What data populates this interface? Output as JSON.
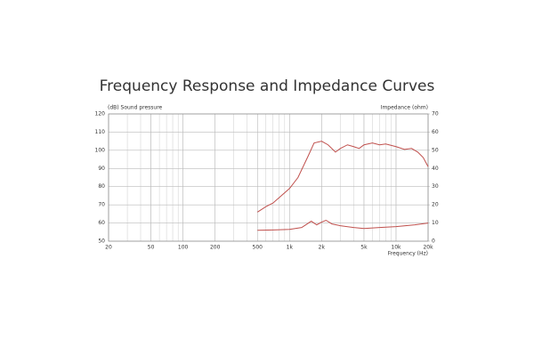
{
  "chart_data": {
    "type": "line",
    "title": "Frequency Response and Impedance Curves",
    "ylabel": "(dB)  Sound pressure",
    "y2label": "Impedance  (ohm)",
    "xlabel": "Frequency  (Hz)",
    "xscale": "log",
    "xlim": [
      20,
      20000
    ],
    "xticks": [
      20,
      50,
      100,
      200,
      500,
      {
        "value": 1000,
        "label": "1k"
      },
      {
        "value": 2000,
        "label": "2k"
      },
      {
        "value": 5000,
        "label": "5k"
      },
      {
        "value": 10000,
        "label": "10k"
      },
      {
        "value": 20000,
        "label": "20k"
      }
    ],
    "ylim": [
      50,
      120
    ],
    "yticks": [
      50,
      60,
      70,
      80,
      90,
      100,
      110,
      120
    ],
    "y2lim": [
      0,
      70
    ],
    "y2ticks": [
      0,
      10,
      20,
      30,
      40,
      50,
      60,
      70
    ],
    "grid": true,
    "series": [
      {
        "name": "Sound pressure",
        "color": "#c0504d",
        "x": [
          500,
          600,
          700,
          800,
          1000,
          1200,
          1500,
          1700,
          2000,
          2300,
          2700,
          3000,
          3500,
          4000,
          4500,
          5000,
          6000,
          7000,
          8000,
          10000,
          12000,
          14000,
          16000,
          18000,
          20000
        ],
        "values": [
          66,
          69,
          71,
          74,
          79,
          85,
          97,
          104,
          105,
          103,
          99,
          101,
          103,
          102,
          101,
          103,
          104,
          103,
          103.5,
          102,
          100.5,
          101,
          99,
          96,
          91
        ]
      },
      {
        "name": "Impedance",
        "color": "#c0504d",
        "axis": "y2",
        "x": [
          500,
          700,
          1000,
          1300,
          1600,
          1800,
          2000,
          2200,
          2500,
          3000,
          4000,
          5000,
          7000,
          10000,
          15000,
          20000
        ],
        "values": [
          6,
          6.2,
          6.5,
          7.5,
          11,
          9,
          10.5,
          11.5,
          9.5,
          8.5,
          7.5,
          7,
          7.5,
          8,
          9,
          10
        ]
      }
    ]
  }
}
